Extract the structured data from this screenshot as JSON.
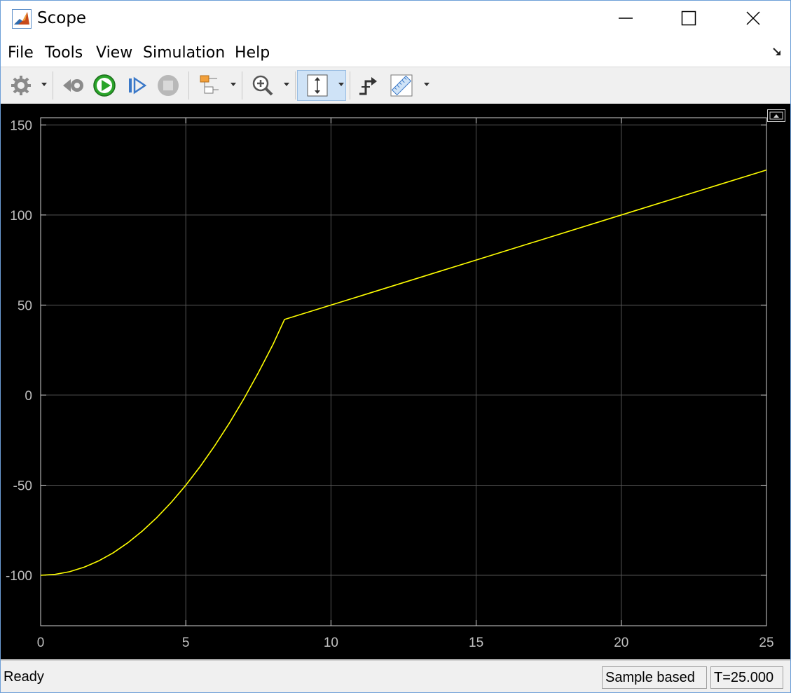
{
  "window": {
    "title": "Scope",
    "controls": [
      "minimize-icon",
      "maximize-icon",
      "close-icon"
    ]
  },
  "menu": {
    "items": [
      "File",
      "Tools",
      "View",
      "Simulation",
      "Help"
    ]
  },
  "toolbar": {
    "buttons": [
      {
        "name": "settings-button",
        "icon": "gear-icon",
        "dropdown": true
      },
      {
        "name": "step-back-button",
        "icon": "step-back-icon",
        "dropdown": false
      },
      {
        "name": "run-button",
        "icon": "play-icon",
        "dropdown": false
      },
      {
        "name": "step-forward-button",
        "icon": "step-forward-icon",
        "dropdown": false
      },
      {
        "name": "stop-button",
        "icon": "stop-icon",
        "dropdown": false
      },
      {
        "name": "highlight-block-button",
        "icon": "block-diagram-icon",
        "dropdown": true
      },
      {
        "name": "zoom-button",
        "icon": "zoom-in-icon",
        "dropdown": true
      },
      {
        "name": "autoscale-button",
        "icon": "autoscale-icon",
        "dropdown": true,
        "active": true
      },
      {
        "name": "triggers-button",
        "icon": "trigger-icon",
        "dropdown": false
      },
      {
        "name": "measurements-button",
        "icon": "ruler-icon",
        "dropdown": true
      }
    ]
  },
  "status": {
    "text": "Ready",
    "mode": "Sample based",
    "time": "T=25.000"
  },
  "colors": {
    "plot_background": "#000000",
    "grid": "#555555",
    "axes": "#cfcfcf",
    "line": "#ffff00",
    "tick_label": "#bfbfbf"
  },
  "chart_data": {
    "type": "line",
    "title": "",
    "xlabel": "",
    "ylabel": "",
    "xlim": [
      0,
      25
    ],
    "ylim": [
      -128,
      154
    ],
    "xticks": [
      0,
      5,
      10,
      15,
      20,
      25
    ],
    "yticks": [
      150,
      100,
      50,
      0,
      -50,
      -100
    ],
    "grid": true,
    "series": [
      {
        "color": "#ffff00",
        "x": [
          0,
          0.5,
          1,
          1.5,
          2,
          2.5,
          3,
          3.5,
          4,
          4.5,
          5,
          5.5,
          6,
          6.5,
          7,
          7.5,
          8,
          8.4,
          10,
          15,
          20,
          25
        ],
        "y": [
          -100,
          -99.5,
          -98,
          -95.5,
          -92,
          -87.5,
          -82,
          -75.5,
          -68,
          -59.5,
          -50,
          -39.5,
          -28,
          -15.5,
          -2,
          12.5,
          28,
          42,
          50,
          75,
          100,
          125
        ]
      }
    ]
  }
}
